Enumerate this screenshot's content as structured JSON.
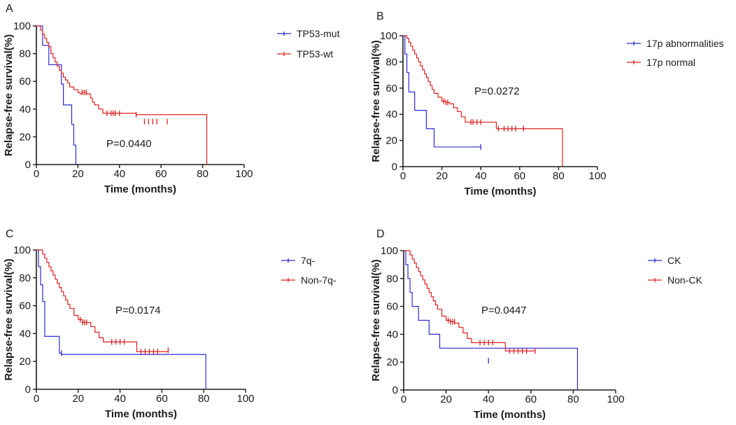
{
  "figure": {
    "xlabel": "Time (months)",
    "ylabel": "Relapse-free survival(%)"
  },
  "chart_data": [
    {
      "panel": "A",
      "type": "line",
      "subtype": "kaplan-meier",
      "title": "",
      "xlabel": "Time (months)",
      "ylabel": "Relapse-free survival(%)",
      "xlim": [
        0,
        100
      ],
      "ylim": [
        0,
        100
      ],
      "xticks": [
        "0",
        "20",
        "40",
        "60",
        "80",
        "100"
      ],
      "yticks": [
        "0",
        "20",
        "40",
        "60",
        "80",
        "100"
      ],
      "annotation": "P=0.0440",
      "legend_position": "right",
      "series": [
        {
          "name": "TP53-mut",
          "color": "#2b2bd6",
          "x": [
            0,
            3,
            6,
            12,
            13,
            17,
            18,
            19
          ],
          "y": [
            100,
            86,
            72,
            58,
            43,
            29,
            14,
            0
          ],
          "censors_x": [],
          "censors_y": []
        },
        {
          "name": "TP53-wt",
          "color": "#e02020",
          "x": [
            0,
            2,
            3,
            4,
            5,
            6,
            7,
            8,
            9,
            10,
            11,
            12,
            13,
            14,
            15,
            16,
            18,
            20,
            21,
            22,
            24,
            26,
            27,
            28,
            30,
            32,
            48,
            82
          ],
          "y": [
            100,
            97,
            94,
            91,
            88,
            85,
            80,
            77,
            74,
            71,
            68,
            66,
            63,
            61,
            59,
            56,
            54,
            52,
            51,
            52,
            51,
            48,
            45,
            43,
            40,
            37,
            36,
            0
          ],
          "censors_x": [
            22,
            23,
            24,
            34,
            36,
            37,
            38,
            40,
            48,
            52,
            54,
            56,
            58,
            63
          ],
          "censors_y": [
            52,
            52,
            52,
            37,
            37,
            37,
            37,
            37,
            36,
            31,
            31,
            31,
            31,
            31
          ]
        }
      ]
    },
    {
      "panel": "B",
      "type": "line",
      "subtype": "kaplan-meier",
      "title": "",
      "xlabel": "Time (months)",
      "ylabel": "Relapse-free survival(%)",
      "xlim": [
        0,
        100
      ],
      "ylim": [
        0,
        100
      ],
      "xticks": [
        "0",
        "20",
        "40",
        "60",
        "80",
        "100"
      ],
      "yticks": [
        "0",
        "20",
        "40",
        "60",
        "80",
        "100"
      ],
      "annotation": "P=0.0272",
      "legend_position": "right",
      "series": [
        {
          "name": "17p abnormalities",
          "color": "#2b2bd6",
          "x": [
            0,
            1,
            2,
            3,
            6,
            12,
            16
          ],
          "y": [
            100,
            86,
            72,
            57,
            43,
            29,
            15
          ],
          "censors_x": [
            40
          ],
          "censors_y": [
            15
          ]
        },
        {
          "name": "17p normal",
          "color": "#e02020",
          "x": [
            0,
            2,
            3,
            4,
            5,
            6,
            7,
            8,
            9,
            10,
            11,
            12,
            13,
            14,
            15,
            16,
            18,
            20,
            22,
            24,
            26,
            28,
            30,
            32,
            48,
            82
          ],
          "y": [
            100,
            98,
            95,
            92,
            89,
            86,
            83,
            80,
            77,
            74,
            71,
            68,
            65,
            62,
            59,
            56,
            53,
            50,
            49,
            48,
            45,
            42,
            38,
            34,
            29,
            0
          ],
          "censors_x": [
            21,
            22,
            23,
            35,
            36,
            38,
            40,
            49,
            52,
            54,
            56,
            58,
            62
          ],
          "censors_y": [
            50,
            49,
            49,
            34,
            34,
            34,
            34,
            29,
            29,
            29,
            29,
            29,
            29
          ]
        }
      ]
    },
    {
      "panel": "C",
      "type": "line",
      "subtype": "kaplan-meier",
      "title": "",
      "xlabel": "Time (months)",
      "ylabel": "Relapse-free survival(%)",
      "xlim": [
        0,
        100
      ],
      "ylim": [
        0,
        100
      ],
      "xticks": [
        "0",
        "20",
        "40",
        "60",
        "80",
        "100"
      ],
      "yticks": [
        "0",
        "20",
        "40",
        "60",
        "80",
        "100"
      ],
      "annotation": "P=0.0174",
      "legend_position": "right",
      "series": [
        {
          "name": "7q-",
          "color": "#2b2bd6",
          "x": [
            0,
            1,
            2,
            3,
            4,
            11,
            12,
            81
          ],
          "y": [
            100,
            88,
            75,
            63,
            38,
            26,
            25,
            0
          ],
          "censors_x": [
            12
          ],
          "censors_y": [
            26
          ]
        },
        {
          "name": "Non-7q-",
          "color": "#e02020",
          "x": [
            0,
            3,
            4,
            5,
            6,
            7,
            8,
            9,
            10,
            11,
            12,
            13,
            14,
            15,
            16,
            18,
            20,
            22,
            24,
            26,
            28,
            30,
            32,
            48
          ],
          "y": [
            100,
            97,
            94,
            91,
            88,
            85,
            82,
            79,
            76,
            73,
            70,
            67,
            64,
            61,
            58,
            53,
            50,
            48,
            48,
            45,
            41,
            37,
            34,
            27
          ],
          "censors_x": [
            21,
            22,
            23,
            24,
            36,
            38,
            40,
            42,
            50,
            52,
            54,
            56,
            58,
            63
          ],
          "censors_y": [
            50,
            48,
            48,
            48,
            34,
            34,
            34,
            34,
            27,
            27,
            27,
            27,
            27,
            28
          ]
        }
      ]
    },
    {
      "panel": "D",
      "type": "line",
      "subtype": "kaplan-meier",
      "title": "",
      "xlabel": "Time (months)",
      "ylabel": "Relapse-free survival(%)",
      "xlim": [
        0,
        100
      ],
      "ylim": [
        0,
        100
      ],
      "xticks": [
        "0",
        "20",
        "40",
        "60",
        "80",
        "100"
      ],
      "yticks": [
        "0",
        "20",
        "40",
        "60",
        "80",
        "100"
      ],
      "annotation": "P=0.0447",
      "legend_position": "right",
      "series": [
        {
          "name": "CK",
          "color": "#2b2bd6",
          "x": [
            0,
            1,
            2,
            3,
            4,
            7,
            12,
            17,
            82
          ],
          "y": [
            100,
            90,
            80,
            70,
            60,
            50,
            40,
            30,
            0
          ],
          "censors_x": [
            40
          ],
          "censors_y": [
            21
          ]
        },
        {
          "name": "Non-CK",
          "color": "#e02020",
          "x": [
            0,
            3,
            4,
            5,
            6,
            7,
            8,
            9,
            10,
            11,
            12,
            13,
            14,
            15,
            16,
            18,
            20,
            22,
            24,
            26,
            28,
            30,
            32,
            48
          ],
          "y": [
            100,
            97,
            94,
            91,
            88,
            85,
            82,
            79,
            76,
            73,
            70,
            67,
            64,
            61,
            58,
            53,
            50,
            49,
            48,
            45,
            41,
            37,
            34,
            28
          ],
          "censors_x": [
            21,
            22,
            23,
            24,
            36,
            38,
            40,
            42,
            50,
            52,
            54,
            56,
            58,
            62
          ],
          "censors_y": [
            50,
            49,
            49,
            49,
            34,
            34,
            34,
            34,
            28,
            28,
            28,
            28,
            28,
            28
          ]
        }
      ]
    }
  ]
}
